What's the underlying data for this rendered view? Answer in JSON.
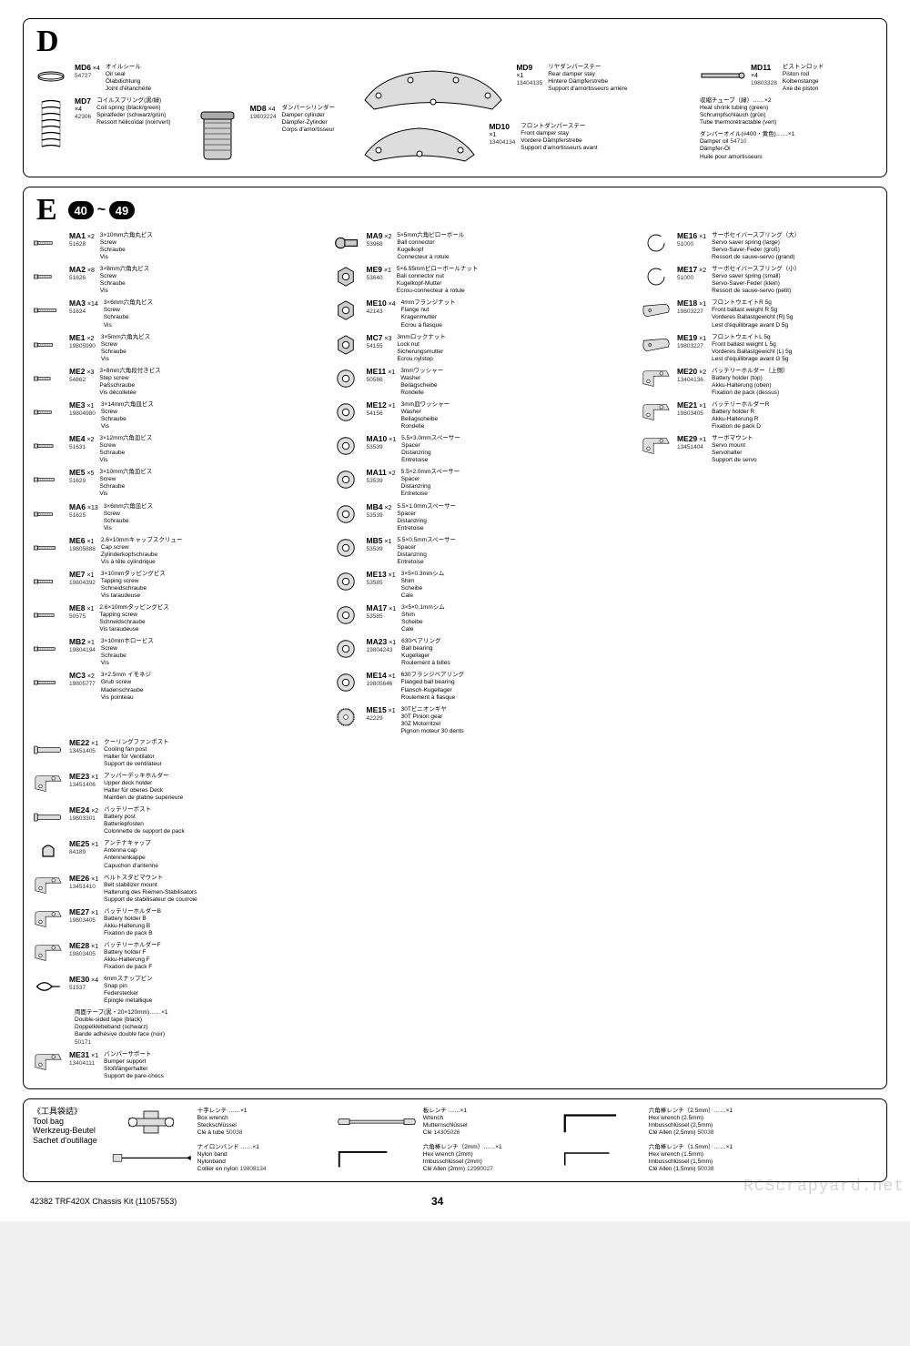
{
  "footer": {
    "left": "42382 TRF420X Chassis Kit (11057553)",
    "page": "34"
  },
  "watermark": "RCScrapyard.net",
  "sectionD": {
    "letter": "D",
    "parts": [
      {
        "id": "MD6",
        "qty": "×4",
        "code": "54727",
        "jp": "オイルシール",
        "descs": [
          "Oil seal",
          "Ölabdichtung",
          "Joint d'étanchéité"
        ]
      },
      {
        "id": "MD7",
        "qty": "×4",
        "code": "42306",
        "jp": "コイルスプリング(黒/緑)",
        "descs": [
          "Coil spring (black/green)",
          "Spiralfeder (schwarz/grün)",
          "Ressort hélicoïdal (noir/vert)"
        ]
      },
      {
        "id": "MD8",
        "qty": "×4",
        "code": "19803224",
        "jp": "ダンパーシリンダー",
        "descs": [
          "Damper cylinder",
          "Dämpfer-Zylinder",
          "Corps d'amortisseur"
        ]
      },
      {
        "id": "MD9",
        "qty": "×1",
        "code": "13404135",
        "jp": "リヤダンパーステー",
        "descs": [
          "Rear damper stay",
          "Hintere Dämpferstrebe",
          "Support d'amortisseurs arrière"
        ]
      },
      {
        "id": "MD10",
        "qty": "×1",
        "code": "13404134",
        "jp": "フロントダンパーステー",
        "descs": [
          "Front damper stay",
          "Vordere Dämpferstrebe",
          "Support d'amortisseurs avant"
        ]
      },
      {
        "id": "MD11",
        "qty": "×4",
        "code": "19803328",
        "jp": "ピストンロッド",
        "descs": [
          "Piston rod",
          "Kolbenstange",
          "Axe de piston"
        ]
      },
      {
        "id": "",
        "qty": "",
        "code": "",
        "jp": "収縮チューブ（緑）……×2",
        "descs": [
          "Heat shrink tubing (green)",
          "Schrumpfschlauch (grün)",
          "Tube thermorétractable (vert)"
        ]
      },
      {
        "id": "",
        "qty": "",
        "code": "54710",
        "jp": "ダンパーオイル(#400・黄色)……×1",
        "descs": [
          "Damper oil",
          "Dämpfer-Öl",
          "Huile pour amortisseurs"
        ]
      }
    ]
  },
  "sectionE": {
    "letter": "E",
    "range_from": "40",
    "range_to": "49",
    "columns": [
      [
        {
          "id": "MA1",
          "qty": "×2",
          "code": "51628",
          "jp": "3×10mm六角丸ビス",
          "descs": [
            "Screw",
            "Schraube",
            "Vis"
          ]
        },
        {
          "id": "MA2",
          "qty": "×8",
          "code": "51626",
          "jp": "3×8mm六角丸ビス",
          "descs": [
            "Screw",
            "Schraube",
            "Vis"
          ]
        },
        {
          "id": "MA3",
          "qty": "×14",
          "code": "51624",
          "jp": "3×6mm六角丸ビス",
          "descs": [
            "Screw",
            "Schraube",
            "Vis"
          ]
        },
        {
          "id": "ME1",
          "qty": "×2",
          "code": "19805990",
          "jp": "3×5mm六角丸ビス",
          "descs": [
            "Screw",
            "Schraube",
            "Vis"
          ]
        },
        {
          "id": "ME2",
          "qty": "×3",
          "code": "54862",
          "jp": "3×8mm六角段付きビス",
          "descs": [
            "Step screw",
            "Paßschraube",
            "Vis décolletée"
          ]
        },
        {
          "id": "ME3",
          "qty": "×1",
          "code": "19804980",
          "jp": "3×14mm六角皿ビス",
          "descs": [
            "Screw",
            "Schraube",
            "Vis"
          ]
        },
        {
          "id": "ME4",
          "qty": "×2",
          "code": "51631",
          "jp": "3×12mm六角皿ビス",
          "descs": [
            "Screw",
            "Schraube",
            "Vis"
          ]
        },
        {
          "id": "ME5",
          "qty": "×5",
          "code": "51629",
          "jp": "3×10mm六角皿ビス",
          "descs": [
            "Screw",
            "Schraube",
            "Vis"
          ]
        },
        {
          "id": "MA6",
          "qty": "×13",
          "code": "51625",
          "jp": "3×6mm六角皿ビス",
          "descs": [
            "Screw",
            "Schraube",
            "Vis"
          ]
        },
        {
          "id": "ME6",
          "qty": "×1",
          "code": "19805888",
          "jp": "2.6×10mmキャップスクリュー",
          "descs": [
            "Cap screw",
            "Zylinderkopfschraube",
            "Vis à tête cylindrique"
          ]
        },
        {
          "id": "ME7",
          "qty": "×1",
          "code": "19804392",
          "jp": "3×10mmタッピングビス",
          "descs": [
            "Tapping screw",
            "Schneidschraube",
            "Vis taraudeuse"
          ]
        },
        {
          "id": "ME8",
          "qty": "×1",
          "code": "50575",
          "jp": "2.6×10mmタッピングビス",
          "descs": [
            "Tapping screw",
            "Schneidschraube",
            "Vis taraudeuse"
          ]
        },
        {
          "id": "MB2",
          "qty": "×1",
          "code": "19804194",
          "jp": "3×10mmホロービス",
          "descs": [
            "Screw",
            "Schraube",
            "Vis"
          ]
        },
        {
          "id": "MC3",
          "qty": "×2",
          "code": "19805777",
          "jp": "3×2.5mm イモネジ",
          "descs": [
            "Grub screw",
            "Madenschraube",
            "Vis pointeau"
          ]
        }
      ],
      [
        {
          "id": "MA9",
          "qty": "×2",
          "code": "53968",
          "jp": "5×5mm六角ピローボール",
          "descs": [
            "Ball connector",
            "Kugelkopf",
            "Connecteur à rotule"
          ]
        },
        {
          "id": "ME9",
          "qty": "×1",
          "code": "53640",
          "jp": "5×6.55mmピローボールナット",
          "descs": [
            "Ball connector nut",
            "Kugelkopf-Mutter",
            "Ecrou-connecteur à rotule"
          ]
        },
        {
          "id": "ME10",
          "qty": "×4",
          "code": "42143",
          "jp": "4mmフランジナット",
          "descs": [
            "Flange nut",
            "Kragenmutter",
            "Ecrou à flasque"
          ]
        },
        {
          "id": "MC7",
          "qty": "×3",
          "code": "54155",
          "jp": "3mmロックナット",
          "descs": [
            "Lock nut",
            "Sicherungsmutter",
            "Ecrou nylstop"
          ]
        },
        {
          "id": "ME11",
          "qty": "×1",
          "code": "50586",
          "jp": "3mmワッシャー",
          "descs": [
            "Washer",
            "Beilagscheibe",
            "Rondelle"
          ]
        },
        {
          "id": "ME12",
          "qty": "×1",
          "code": "54156",
          "jp": "3mm皿ワッシャー",
          "descs": [
            "Washer",
            "Beilagscheibe",
            "Rondelle"
          ]
        },
        {
          "id": "MA10",
          "qty": "×1",
          "code": "53539",
          "jp": "5.5×3.0mmスペーサー",
          "descs": [
            "Spacer",
            "Distanzring",
            "Entretoise"
          ]
        },
        {
          "id": "MA11",
          "qty": "×2",
          "code": "53539",
          "jp": "5.5×2.0mmスペーサー",
          "descs": [
            "Spacer",
            "Distanzring",
            "Entretoise"
          ]
        },
        {
          "id": "MB4",
          "qty": "×2",
          "code": "53539",
          "jp": "5.5×1.0mmスペーサー",
          "descs": [
            "Spacer",
            "Distanzring",
            "Entretoise"
          ]
        },
        {
          "id": "MB5",
          "qty": "×1",
          "code": "53539",
          "jp": "5.5×0.5mmスペーサー",
          "descs": [
            "Spacer",
            "Distanzring",
            "Entretoise"
          ]
        },
        {
          "id": "ME13",
          "qty": "×1",
          "code": "53585",
          "jp": "3×5×0.3mmシム",
          "descs": [
            "Shim",
            "Scheibe",
            "Cale"
          ]
        },
        {
          "id": "MA17",
          "qty": "×1",
          "code": "53585",
          "jp": "3×5×0.1mmシム",
          "descs": [
            "Shim",
            "Scheibe",
            "Cale"
          ]
        },
        {
          "id": "MA23",
          "qty": "×1",
          "code": "19804243",
          "jp": "630ベアリング",
          "descs": [
            "Ball bearing",
            "Kugellager",
            "Roulement à billes"
          ]
        },
        {
          "id": "ME14",
          "qty": "×1",
          "code": "19805646",
          "jp": "630フランジベアリング",
          "descs": [
            "Flanged ball bearing",
            "Flansch-Kugellager",
            "Roulement à flasque"
          ]
        },
        {
          "id": "ME15",
          "qty": "×1",
          "code": "42229",
          "jp": "30Tピニオンギヤ",
          "descs": [
            "30T Pinion gear",
            "30Z Motorritzel",
            "Pignon moteur 30 dents"
          ]
        }
      ],
      [
        {
          "id": "ME16",
          "qty": "×1",
          "code": "51000",
          "jp": "サーボセイバースプリング（大）",
          "descs": [
            "Servo saver spring (large)",
            "Servo-Saver-Feder (groß)",
            "Ressort de sauve-servo (grand)"
          ]
        },
        {
          "id": "ME17",
          "qty": "×2",
          "code": "51000",
          "jp": "サーボセイバースプリング（小）",
          "descs": [
            "Servo saver spring (small)",
            "Servo-Saver-Feder (klein)",
            "Ressort de sauve-servo (petit)"
          ]
        },
        {
          "id": "ME18",
          "qty": "×1",
          "code": "19803227",
          "jp": "フロントウエイトR 5g",
          "descs": [
            "Front ballast weight R 5g",
            "Vorderes Ballastgewicht (R) 5g",
            "Lest d'équilibrage avant D 5g"
          ]
        },
        {
          "id": "ME19",
          "qty": "×1",
          "code": "19803227",
          "jp": "フロントウエイトL 5g",
          "descs": [
            "Front ballast weight L 5g",
            "Vorderes Ballastgewicht (L) 5g",
            "Lest d'équilibrage avant G 5g"
          ]
        },
        {
          "id": "ME20",
          "qty": "×2",
          "code": "13404136",
          "jp": "バッテリーホルダー（上側）",
          "descs": [
            "Battery holder (top)",
            "Akku-Halterung (oben)",
            "Fixation de pack (dessus)"
          ]
        },
        {
          "id": "ME21",
          "qty": "×1",
          "code": "19803405",
          "jp": "バッテリーホルダーR",
          "descs": [
            "Battery holder R",
            "Akku-Halterung R",
            "Fixation de pack D"
          ]
        },
        {
          "id": "ME29",
          "qty": "×1",
          "code": "13451404",
          "jp": "サーボマウント",
          "descs": [
            "Servo mount",
            "Servohalter",
            "Support de servo"
          ]
        }
      ],
      [
        {
          "id": "ME22",
          "qty": "×1",
          "code": "13451405",
          "jp": "クーリングファンポスト",
          "descs": [
            "Cooling fan post",
            "Halter für Ventilator",
            "Support de ventilateur"
          ]
        },
        {
          "id": "ME23",
          "qty": "×1",
          "code": "13451406",
          "jp": "アッパーデッキホルダー",
          "descs": [
            "Upper deck holder",
            "Halter für oberes Deck",
            "Maintien de platine supérieure"
          ]
        },
        {
          "id": "ME24",
          "qty": "×2",
          "code": "19803301",
          "jp": "バッテリーポスト",
          "descs": [
            "Battery post",
            "Batteriepfosten",
            "Colonnette de support de pack"
          ]
        },
        {
          "id": "ME25",
          "qty": "×1",
          "code": "84189",
          "jp": "アンテナキャップ",
          "descs": [
            "Antenna cap",
            "Antennenkappe",
            "Capuchon d'antenne"
          ]
        },
        {
          "id": "ME26",
          "qty": "×1",
          "code": "13451410",
          "jp": "ベルトスタビマウント",
          "descs": [
            "Belt stabilizer mount",
            "Halterung des Riemen-Stabilisators",
            "Support de stabilisateur de courroie"
          ]
        },
        {
          "id": "ME27",
          "qty": "×1",
          "code": "19803405",
          "jp": "バッテリーホルダーB",
          "descs": [
            "Battery holder B",
            "Akku-Halterung B",
            "Fixation de pack B"
          ]
        },
        {
          "id": "ME28",
          "qty": "×1",
          "code": "19803405",
          "jp": "バッテリーホルダーF",
          "descs": [
            "Battery holder F",
            "Akku-Halterung F",
            "Fixation de pack F"
          ]
        },
        {
          "id": "ME30",
          "qty": "×4",
          "code": "51537",
          "jp": "6mmスナップピン",
          "descs": [
            "Snap pin",
            "Federstecker",
            "Epingle métallique"
          ]
        },
        {
          "id": "",
          "qty": "",
          "code": "50171",
          "jp": "両面テープ(黒・20×120mm)……×1",
          "descs": [
            "Double-sided tape (black)",
            "Doppelklebeband (schwarz)",
            "Bande adhésive double face (noir)"
          ]
        },
        {
          "id": "ME31",
          "qty": "×1",
          "code": "13404111",
          "jp": "バンパーサポート",
          "descs": [
            "Bumper support",
            "Stoßfängerhalter",
            "Support de pare-chocs"
          ]
        }
      ]
    ]
  },
  "sectionTool": {
    "title_jp": "《工具袋詰》",
    "titles": [
      "Tool bag",
      "Werkzeug-Beutel",
      "Sachet d'outillage"
    ],
    "tools": [
      {
        "jp": "十字レンチ ……×1",
        "code": "50038",
        "descs": [
          "Box wrench",
          "Steckschlüssel",
          "Clé à tube"
        ]
      },
      {
        "jp": "板レンチ ……×1",
        "code": "14305026",
        "descs": [
          "Wrench",
          "Mutternschlüssel",
          "Clé"
        ]
      },
      {
        "jp": "六角棒レンチ（2.5mm）……×1",
        "code": "50038",
        "descs": [
          "Hex wrench (2.5mm)",
          "Imbusschlüssel (2,5mm)",
          "Clé Allen (2,5mm)"
        ]
      },
      {
        "jp": "ナイロンバンド ……×1",
        "code": "19808134",
        "descs": [
          "Nylon band",
          "Nylonband",
          "Collier en nylon"
        ]
      },
      {
        "jp": "六角棒レンチ（2mm）……×1",
        "code": "12990027",
        "descs": [
          "Hex wrench (2mm)",
          "Imbusschlüssel (2mm)",
          "Clé Allen (2mm)"
        ]
      },
      {
        "jp": "六角棒レンチ（1.5mm）……×1",
        "code": "50038",
        "descs": [
          "Hex wrench (1.5mm)",
          "Imbusschlüssel (1,5mm)",
          "Clé Allen (1,5mm)"
        ]
      }
    ]
  }
}
